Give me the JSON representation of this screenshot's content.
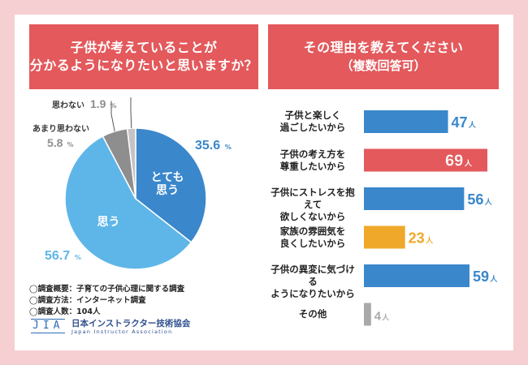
{
  "left_panel": {
    "title_lines": [
      "子供が考えていることが",
      "分かるようになりたいと思いますか？"
    ],
    "survey_info": [
      "◯調査概要：子育ての子供心理に関する調査",
      "◯調査方法：インターネット調査",
      "◯調査人数：104人"
    ],
    "logo": {
      "mark": "JIA",
      "name_jp": "日本インストラクター技術協会",
      "name_en": "Japan Instructor Association"
    }
  },
  "right_panel": {
    "title": "その理由を教えてください",
    "subtitle": "（複数回答可）"
  },
  "chart_data": [
    {
      "type": "pie",
      "title": "子供が考えていることが分かるようになりたいと思いますか？",
      "unit": "%",
      "slices": [
        {
          "label": "とても思う",
          "value": 35.6,
          "label_display": "とても\n思う",
          "color": "#3a87cc"
        },
        {
          "label": "思う",
          "value": 56.7,
          "color": "#5eb6e8"
        },
        {
          "label": "あまり思わない",
          "value": 5.8,
          "color": "#8e8e8e"
        },
        {
          "label": "思わない",
          "value": 1.9,
          "color": "#c4c4c4"
        }
      ]
    },
    {
      "type": "bar",
      "orientation": "horizontal",
      "title": "その理由を教えてください（複数回答可）",
      "unit": "人",
      "categories": [
        "子供と楽しく過ごしたいから",
        "子供の考え方を尊重したいから",
        "子供にストレスを抱えて欲しくないから",
        "家族の雰囲気を良くしたいから",
        "子供の異変に気づけるようになりたいから",
        "その他"
      ],
      "category_lines": [
        [
          "子供と楽しく",
          "過ごしたいから"
        ],
        [
          "子供の考え方を",
          "尊重したいから"
        ],
        [
          "子供にストレスを抱えて",
          "欲しくないから"
        ],
        [
          "家族の雰囲気を",
          "良くしたいから"
        ],
        [
          "子供の異変に気づける",
          "ようになりたいから"
        ],
        [
          "その他"
        ]
      ],
      "values": [
        47,
        69,
        56,
        23,
        59,
        4
      ],
      "colors": [
        "#3a87cc",
        "#e3595c",
        "#3a87cc",
        "#f0a82a",
        "#3a87cc",
        "#a9a9a9"
      ],
      "max": 69
    }
  ]
}
